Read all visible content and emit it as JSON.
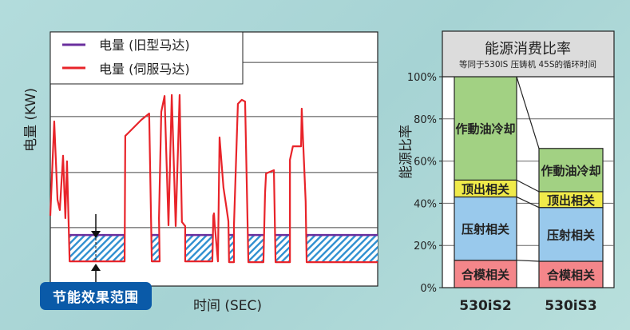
{
  "chart_data": [
    {
      "type": "line",
      "title": "",
      "xlabel": "时间 (SEC)",
      "ylabel": "电量 (KW)",
      "xlim": [
        0,
        100
      ],
      "ylim": [
        0,
        100
      ],
      "grid": true,
      "legend_placement": "top-left",
      "annotation": "节能效果范围",
      "series": [
        {
          "name": "电量 (旧型马达)",
          "color": "#6a2f9e",
          "segments": [
            [
              5.9,
              22.7
            ],
            [
              31,
              33.4
            ],
            [
              41.2,
              49.5
            ],
            [
              54.6,
              56.1
            ],
            [
              60.5,
              65.1
            ],
            [
              68.8,
              73.2
            ],
            [
              78.3,
              100
            ]
          ],
          "level": 20.1
        },
        {
          "name": "电量 (伺服马达)",
          "color": "#e8242a",
          "points": [
            [
              0,
              27.7
            ],
            [
              1.2,
              64.8
            ],
            [
              2.2,
              34
            ],
            [
              2.9,
              29.9
            ],
            [
              3.9,
              51.3
            ],
            [
              4.6,
              26.7
            ],
            [
              5.1,
              49.1
            ],
            [
              5.9,
              9.7
            ],
            [
              22.7,
              9.7
            ],
            [
              22.9,
              59.1
            ],
            [
              23.7,
              60.1
            ],
            [
              27.8,
              65.4
            ],
            [
              30.2,
              67.9
            ],
            [
              31,
              9.7
            ],
            [
              33.4,
              9.7
            ],
            [
              33.2,
              26.7
            ],
            [
              33.9,
              68.6
            ],
            [
              34.9,
              74.8
            ],
            [
              36.1,
              23.9
            ],
            [
              37.1,
              75.2
            ],
            [
              38.3,
              23.6
            ],
            [
              39.5,
              75.2
            ],
            [
              40.2,
              25.2
            ],
            [
              41.2,
              23.6
            ],
            [
              41.2,
              9.7
            ],
            [
              49.5,
              9.7
            ],
            [
              49.8,
              27.7
            ],
            [
              50,
              28.6
            ],
            [
              50.2,
              24.5
            ],
            [
              51.2,
              9.7
            ],
            [
              51.7,
              58.5
            ],
            [
              52.9,
              38.7
            ],
            [
              53.7,
              31.8
            ],
            [
              54.4,
              25.5
            ],
            [
              54.6,
              9.4
            ],
            [
              56.1,
              9.4
            ],
            [
              56.1,
              23.9
            ],
            [
              57.3,
              71.7
            ],
            [
              58.5,
              73.3
            ],
            [
              59.5,
              72.6
            ],
            [
              60.5,
              9.4
            ],
            [
              65.1,
              9.4
            ],
            [
              65.6,
              36.5
            ],
            [
              65.9,
              44.3
            ],
            [
              68.3,
              45.6
            ],
            [
              68.8,
              9.4
            ],
            [
              73.2,
              9.4
            ],
            [
              73.2,
              49.7
            ],
            [
              74.1,
              55
            ],
            [
              76.6,
              55
            ],
            [
              76.8,
              69.8
            ],
            [
              78,
              33.3
            ],
            [
              78.3,
              9.4
            ],
            [
              100,
              9.4
            ]
          ]
        }
      ]
    },
    {
      "type": "bar",
      "stacked": true,
      "title": "能源消费比率",
      "subtitle": "等同于530IS 压铸机 45S的循环时间",
      "ylabel": "能源比率",
      "ylim": [
        0,
        100
      ],
      "yticks": [
        "0%",
        "20%",
        "40%",
        "60%",
        "80%",
        "100%"
      ],
      "categories": [
        "530iS2",
        "530iS3"
      ],
      "series": [
        {
          "name": "合模相关",
          "color": "#f4868a",
          "values": [
            13,
            12.5
          ]
        },
        {
          "name": "压射相关",
          "color": "#99c9ec",
          "values": [
            30,
            25.5
          ]
        },
        {
          "name": "顶出相关",
          "color": "#f0ea4a",
          "values": [
            8,
            7.5
          ]
        },
        {
          "name": "作動油冷却",
          "color": "#a2d183",
          "values": [
            49,
            20.5
          ]
        }
      ]
    }
  ]
}
